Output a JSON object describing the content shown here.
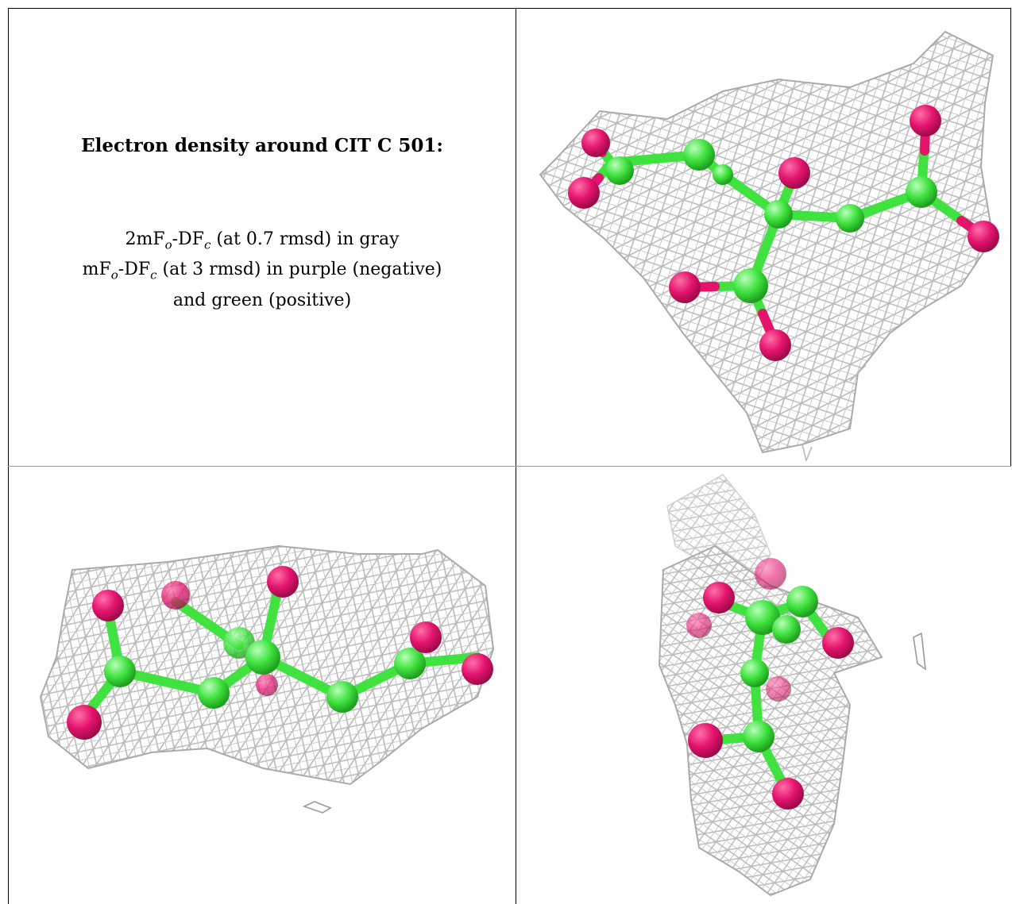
{
  "caption": {
    "title": "Electron density around CIT C 501:",
    "line1": {
      "pre": "2mF",
      "sub1": "o",
      "mid": "-DF",
      "sub2": "c",
      "post": " (at 0.7 rmsd) in gray"
    },
    "line2": {
      "pre": "mF",
      "sub1": "o",
      "mid": "-DF",
      "sub2": "c",
      "post": " (at 3 rmsd) in purple (negative)"
    },
    "line3": "and green (positive)"
  },
  "colors": {
    "mesh": "#b9b9b9",
    "carbon": "#3fe23f",
    "oxygen": "#e4146e",
    "border": "#000000"
  },
  "views": [
    "view-1-mesh-molecule",
    "view-2-mesh-molecule",
    "view-3-mesh-molecule"
  ]
}
